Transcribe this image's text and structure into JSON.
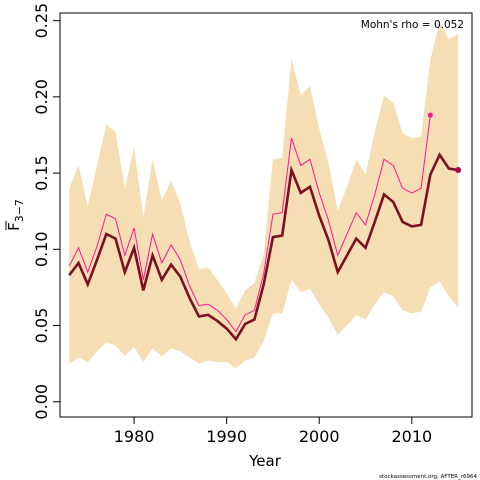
{
  "chart_data": {
    "type": "line",
    "xlabel": "Year",
    "ylabel_main": "F",
    "ylabel_sub": "3−7",
    "annotation": "Mohn's rho = 0.052",
    "credit": "stockassessment.org, AFTER_r6964",
    "xlim": [
      1972,
      2016.5
    ],
    "ylim": [
      -0.01,
      0.255
    ],
    "x_ticks": [
      1980,
      1990,
      2000,
      2010
    ],
    "x_tick_labels": [
      "1980",
      "1990",
      "2000",
      "2010"
    ],
    "y_ticks": [
      0.0,
      0.05,
      0.1,
      0.15,
      0.2,
      0.25
    ],
    "y_tick_labels": [
      "0.00",
      "0.05",
      "0.10",
      "0.15",
      "0.20",
      "0.25"
    ],
    "colors": {
      "band": "#f5deb3",
      "main": "#7b1023",
      "retro": "#ff1493",
      "end_point_main": "#b3004a",
      "end_point_retro": "#ff1493"
    },
    "confidence_band": {
      "years": [
        1973,
        1974,
        1975,
        1976,
        1977,
        1978,
        1979,
        1980,
        1981,
        1982,
        1983,
        1984,
        1985,
        1986,
        1987,
        1988,
        1989,
        1990,
        1991,
        1992,
        1993,
        1994,
        1995,
        1996,
        1997,
        1998,
        1999,
        2000,
        2001,
        2002,
        2003,
        2004,
        2005,
        2006,
        2007,
        2008,
        2009,
        2010,
        2011,
        2012,
        2013,
        2014,
        2015
      ],
      "upper": [
        0.14,
        0.155,
        0.128,
        0.155,
        0.182,
        0.177,
        0.14,
        0.167,
        0.121,
        0.159,
        0.132,
        0.145,
        0.13,
        0.105,
        0.087,
        0.088,
        0.08,
        0.071,
        0.061,
        0.073,
        0.078,
        0.097,
        0.159,
        0.16,
        0.225,
        0.201,
        0.207,
        0.179,
        0.157,
        0.125,
        0.141,
        0.159,
        0.149,
        0.177,
        0.201,
        0.196,
        0.176,
        0.173,
        0.174,
        0.224,
        0.249,
        0.238,
        0.241
      ],
      "lower": [
        0.025,
        0.029,
        0.026,
        0.033,
        0.039,
        0.037,
        0.03,
        0.036,
        0.026,
        0.035,
        0.03,
        0.035,
        0.033,
        0.029,
        0.025,
        0.027,
        0.026,
        0.026,
        0.022,
        0.027,
        0.029,
        0.04,
        0.058,
        0.058,
        0.08,
        0.072,
        0.074,
        0.064,
        0.055,
        0.044,
        0.05,
        0.057,
        0.054,
        0.064,
        0.072,
        0.069,
        0.06,
        0.058,
        0.059,
        0.075,
        0.079,
        0.069,
        0.062
      ]
    },
    "series": [
      {
        "x": [
          1973,
          1974,
          1975,
          1976,
          1977,
          1978,
          1979,
          1980,
          1981,
          1982,
          1983,
          1984,
          1985,
          1986,
          1987,
          1988,
          1989,
          1990,
          1991,
          1992,
          1993,
          1994,
          1995,
          1996,
          1997,
          1998,
          1999,
          2000,
          2001,
          2002,
          2003,
          2004,
          2005,
          2006,
          2007,
          2008,
          2009,
          2010,
          2011,
          2012,
          2013,
          2014,
          2015
        ],
        "values": [
          0.083,
          0.091,
          0.077,
          0.093,
          0.11,
          0.107,
          0.085,
          0.101,
          0.073,
          0.096,
          0.08,
          0.09,
          0.082,
          0.068,
          0.056,
          0.057,
          0.053,
          0.048,
          0.041,
          0.051,
          0.054,
          0.077,
          0.108,
          0.109,
          0.152,
          0.137,
          0.141,
          0.122,
          0.106,
          0.085,
          0.096,
          0.107,
          0.101,
          0.118,
          0.136,
          0.131,
          0.118,
          0.115,
          0.116,
          0.149,
          0.162,
          0.153,
          0.152
        ]
      },
      {
        "x": [
          1973,
          1974,
          1975,
          1976,
          1977,
          1978,
          1979,
          1980,
          1981,
          1982,
          1983,
          1984,
          1985,
          1986,
          1987,
          1988,
          1989,
          1990,
          1991,
          1992,
          1993,
          1994,
          1995,
          1996,
          1997,
          1998,
          1999,
          2000,
          2001,
          2002,
          2003,
          2004,
          2005,
          2006,
          2007,
          2008,
          2009,
          2010,
          2011,
          2012
        ],
        "values": [
          0.089,
          0.101,
          0.085,
          0.102,
          0.123,
          0.12,
          0.096,
          0.114,
          0.08,
          0.11,
          0.091,
          0.103,
          0.093,
          0.076,
          0.063,
          0.064,
          0.06,
          0.054,
          0.046,
          0.057,
          0.06,
          0.084,
          0.123,
          0.124,
          0.173,
          0.155,
          0.159,
          0.137,
          0.119,
          0.096,
          0.11,
          0.124,
          0.116,
          0.136,
          0.159,
          0.155,
          0.14,
          0.137,
          0.14,
          0.188
        ]
      }
    ]
  }
}
